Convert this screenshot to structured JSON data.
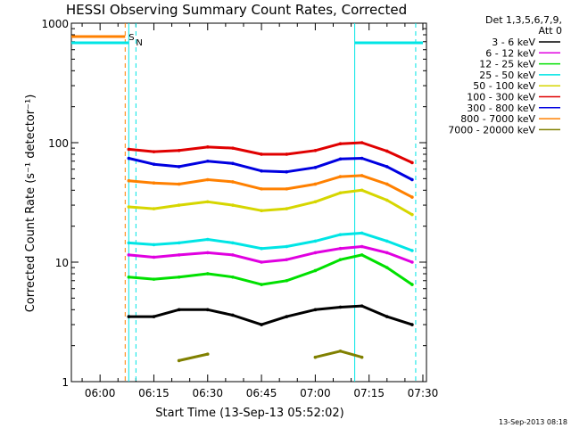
{
  "title": "HESSI Observing Summary Count Rates, Corrected",
  "timestamp": "13-Sep-2013 08:18",
  "legend": {
    "header_line1": "Det 1,3,5,6,7,9,",
    "header_line2": "Att 0"
  },
  "flags": [
    {
      "label": "S",
      "color": "#ff8000",
      "start": "05:52",
      "end": "06:07"
    },
    {
      "label": "N",
      "color": "#00e5e5",
      "start": "05:52",
      "end": "06:08",
      "start2": "07:11",
      "end2": "07:30"
    }
  ],
  "chart_data": {
    "type": "line",
    "title": "HESSI Observing Summary Count Rates, Corrected",
    "xlabel": "Start Time (13-Sep-13 05:52:02)",
    "ylabel": "Corrected Count Rate (s⁻¹ detector⁻¹)",
    "x_ticks": [
      "06:00",
      "06:15",
      "06:30",
      "06:45",
      "07:00",
      "07:15",
      "07:30"
    ],
    "y_ticks": [
      "1",
      "10",
      "100",
      "1000"
    ],
    "y_scale": "log",
    "ylim": [
      1,
      1000
    ],
    "xlim": [
      "05:52",
      "07:31"
    ],
    "vertical_lines": [
      {
        "time": "06:07",
        "color": "#ff8000",
        "style": "dashed"
      },
      {
        "time": "06:08",
        "color": "#00e5e5",
        "style": "solid"
      },
      {
        "time": "06:10",
        "color": "#00e5e5",
        "style": "dashed"
      },
      {
        "time": "07:11",
        "color": "#00e5e5",
        "style": "solid"
      },
      {
        "time": "07:28",
        "color": "#00e5e5",
        "style": "dashed"
      }
    ],
    "x": [
      "06:08",
      "06:15",
      "06:22",
      "06:30",
      "06:37",
      "06:45",
      "06:52",
      "07:00",
      "07:07",
      "07:13",
      "07:20",
      "07:27"
    ],
    "series": [
      {
        "name": "3 - 6 keV",
        "color": "#000000",
        "values": [
          3.5,
          3.5,
          4.0,
          4.0,
          3.6,
          3.0,
          3.5,
          4.0,
          4.2,
          4.3,
          3.5,
          3.0
        ]
      },
      {
        "name": "6 - 12 keV",
        "color": "#e000e0",
        "values": [
          11.5,
          11.0,
          11.5,
          12.0,
          11.5,
          10.0,
          10.5,
          12.0,
          13.0,
          13.5,
          12.0,
          10.0
        ]
      },
      {
        "name": "12 - 25 keV",
        "color": "#00e000",
        "values": [
          7.5,
          7.2,
          7.5,
          8.0,
          7.5,
          6.5,
          7.0,
          8.5,
          10.5,
          11.5,
          9.0,
          6.5
        ]
      },
      {
        "name": "25 - 50 keV",
        "color": "#00e5e5",
        "values": [
          14.5,
          14.0,
          14.5,
          15.5,
          14.5,
          13.0,
          13.5,
          15.0,
          17.0,
          17.5,
          15.0,
          12.5
        ]
      },
      {
        "name": "50 - 100 keV",
        "color": "#d6d600",
        "values": [
          29,
          28,
          30,
          32,
          30,
          27,
          28,
          32,
          38,
          40,
          33,
          25
        ]
      },
      {
        "name": "100 - 300 keV",
        "color": "#e00000",
        "values": [
          88,
          84,
          86,
          92,
          90,
          80,
          80,
          86,
          98,
          100,
          85,
          68
        ]
      },
      {
        "name": "300 - 800 keV",
        "color": "#0000e0",
        "values": [
          74,
          66,
          63,
          70,
          67,
          58,
          57,
          62,
          73,
          74,
          63,
          49
        ]
      },
      {
        "name": "800 - 7000 keV",
        "color": "#ff8000",
        "values": [
          48,
          46,
          45,
          49,
          47,
          41,
          41,
          45,
          52,
          53,
          45,
          35
        ]
      },
      {
        "name": "7000 - 20000 keV",
        "color": "#808000",
        "values": [
          0,
          0,
          1.5,
          1.7,
          0,
          0,
          0,
          1.6,
          1.8,
          1.6,
          0,
          0
        ]
      }
    ]
  }
}
